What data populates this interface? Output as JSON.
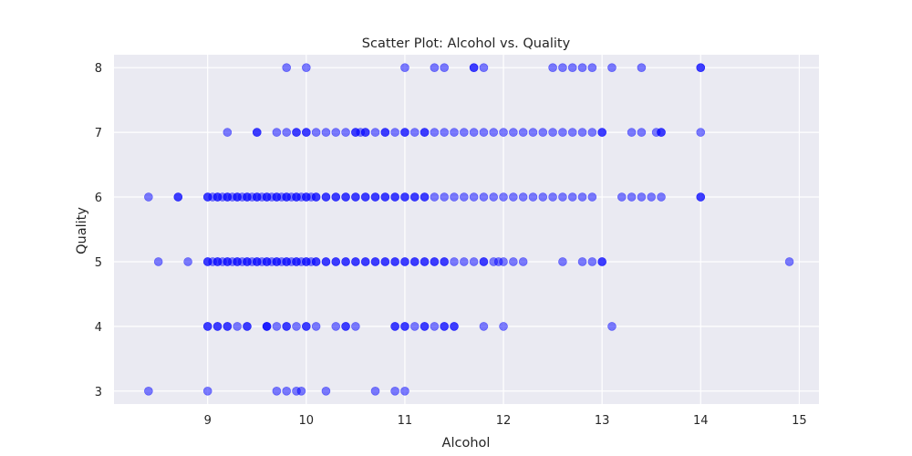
{
  "chart_data": {
    "type": "scatter",
    "title": "Scatter Plot: Alcohol vs. Quality",
    "xlabel": "Alcohol",
    "ylabel": "Quality",
    "xlim": [
      8.05,
      15.2
    ],
    "ylim": [
      2.8,
      8.2
    ],
    "xticks": [
      9,
      10,
      11,
      12,
      13,
      14,
      15
    ],
    "yticks": [
      3,
      4,
      5,
      6,
      7,
      8
    ],
    "grid": true,
    "colors": {
      "point": "#0000ff",
      "plot_background": "#eaeaf2",
      "grid": "#ffffff",
      "text": "#262626"
    },
    "point_alpha": 0.5,
    "series": [
      {
        "quality": 3,
        "x": [
          8.4,
          9.0,
          9.7,
          9.8,
          9.9,
          9.95,
          10.2,
          10.7,
          10.9,
          11.0
        ]
      },
      {
        "quality": 4,
        "x": [
          9.0,
          9.0,
          9.1,
          9.1,
          9.2,
          9.2,
          9.3,
          9.4,
          9.4,
          9.6,
          9.6,
          9.6,
          9.7,
          9.8,
          9.8,
          9.9,
          10.0,
          10.0,
          10.1,
          10.3,
          10.4,
          10.4,
          10.5,
          10.9,
          10.9,
          11.0,
          11.0,
          11.1,
          11.2,
          11.2,
          11.3,
          11.4,
          11.4,
          11.5,
          11.5,
          11.8,
          12.0,
          13.1
        ]
      },
      {
        "quality": 5,
        "x": [
          8.5,
          8.8,
          9.0,
          9.0,
          9.05,
          9.1,
          9.1,
          9.15,
          9.2,
          9.2,
          9.25,
          9.3,
          9.3,
          9.35,
          9.4,
          9.4,
          9.45,
          9.5,
          9.5,
          9.55,
          9.6,
          9.6,
          9.65,
          9.7,
          9.7,
          9.75,
          9.8,
          9.8,
          9.85,
          9.9,
          9.9,
          9.95,
          10.0,
          10.0,
          10.05,
          10.1,
          10.1,
          10.2,
          10.2,
          10.3,
          10.3,
          10.4,
          10.4,
          10.5,
          10.5,
          10.6,
          10.6,
          10.7,
          10.7,
          10.8,
          10.8,
          10.9,
          10.9,
          11.0,
          11.0,
          11.1,
          11.1,
          11.2,
          11.2,
          11.3,
          11.3,
          11.4,
          11.4,
          11.5,
          11.6,
          11.7,
          11.8,
          11.8,
          11.9,
          11.95,
          12.0,
          12.1,
          12.2,
          12.6,
          12.8,
          12.9,
          13.0,
          13.0,
          14.9
        ]
      },
      {
        "quality": 6,
        "x": [
          8.4,
          8.7,
          8.7,
          9.0,
          9.0,
          9.05,
          9.1,
          9.1,
          9.15,
          9.2,
          9.2,
          9.25,
          9.3,
          9.3,
          9.35,
          9.4,
          9.4,
          9.45,
          9.5,
          9.5,
          9.55,
          9.6,
          9.6,
          9.65,
          9.7,
          9.7,
          9.75,
          9.8,
          9.8,
          9.85,
          9.9,
          9.9,
          9.95,
          10.0,
          10.0,
          10.05,
          10.1,
          10.1,
          10.2,
          10.2,
          10.3,
          10.3,
          10.4,
          10.4,
          10.5,
          10.5,
          10.6,
          10.6,
          10.7,
          10.7,
          10.8,
          10.8,
          10.9,
          10.9,
          11.0,
          11.0,
          11.1,
          11.1,
          11.2,
          11.2,
          11.3,
          11.4,
          11.5,
          11.6,
          11.7,
          11.8,
          11.9,
          12.0,
          12.1,
          12.2,
          12.3,
          12.4,
          12.5,
          12.6,
          12.7,
          12.8,
          12.9,
          13.2,
          13.3,
          13.4,
          13.5,
          13.6,
          14.0,
          14.0
        ]
      },
      {
        "quality": 7,
        "x": [
          9.2,
          9.5,
          9.5,
          9.7,
          9.8,
          9.9,
          9.9,
          10.0,
          10.0,
          10.1,
          10.2,
          10.3,
          10.4,
          10.5,
          10.5,
          10.55,
          10.6,
          10.6,
          10.7,
          10.8,
          10.8,
          10.9,
          11.0,
          11.0,
          11.1,
          11.2,
          11.2,
          11.3,
          11.4,
          11.5,
          11.6,
          11.7,
          11.8,
          11.9,
          12.0,
          12.1,
          12.2,
          12.3,
          12.4,
          12.5,
          12.6,
          12.7,
          12.8,
          12.9,
          13.0,
          13.0,
          13.3,
          13.4,
          13.55,
          13.6,
          13.6,
          14.0
        ]
      },
      {
        "quality": 8,
        "x": [
          9.8,
          10.0,
          11.0,
          11.3,
          11.4,
          11.7,
          11.7,
          11.8,
          12.5,
          12.6,
          12.7,
          12.8,
          12.9,
          13.1,
          13.4,
          14.0,
          14.0
        ]
      }
    ]
  }
}
